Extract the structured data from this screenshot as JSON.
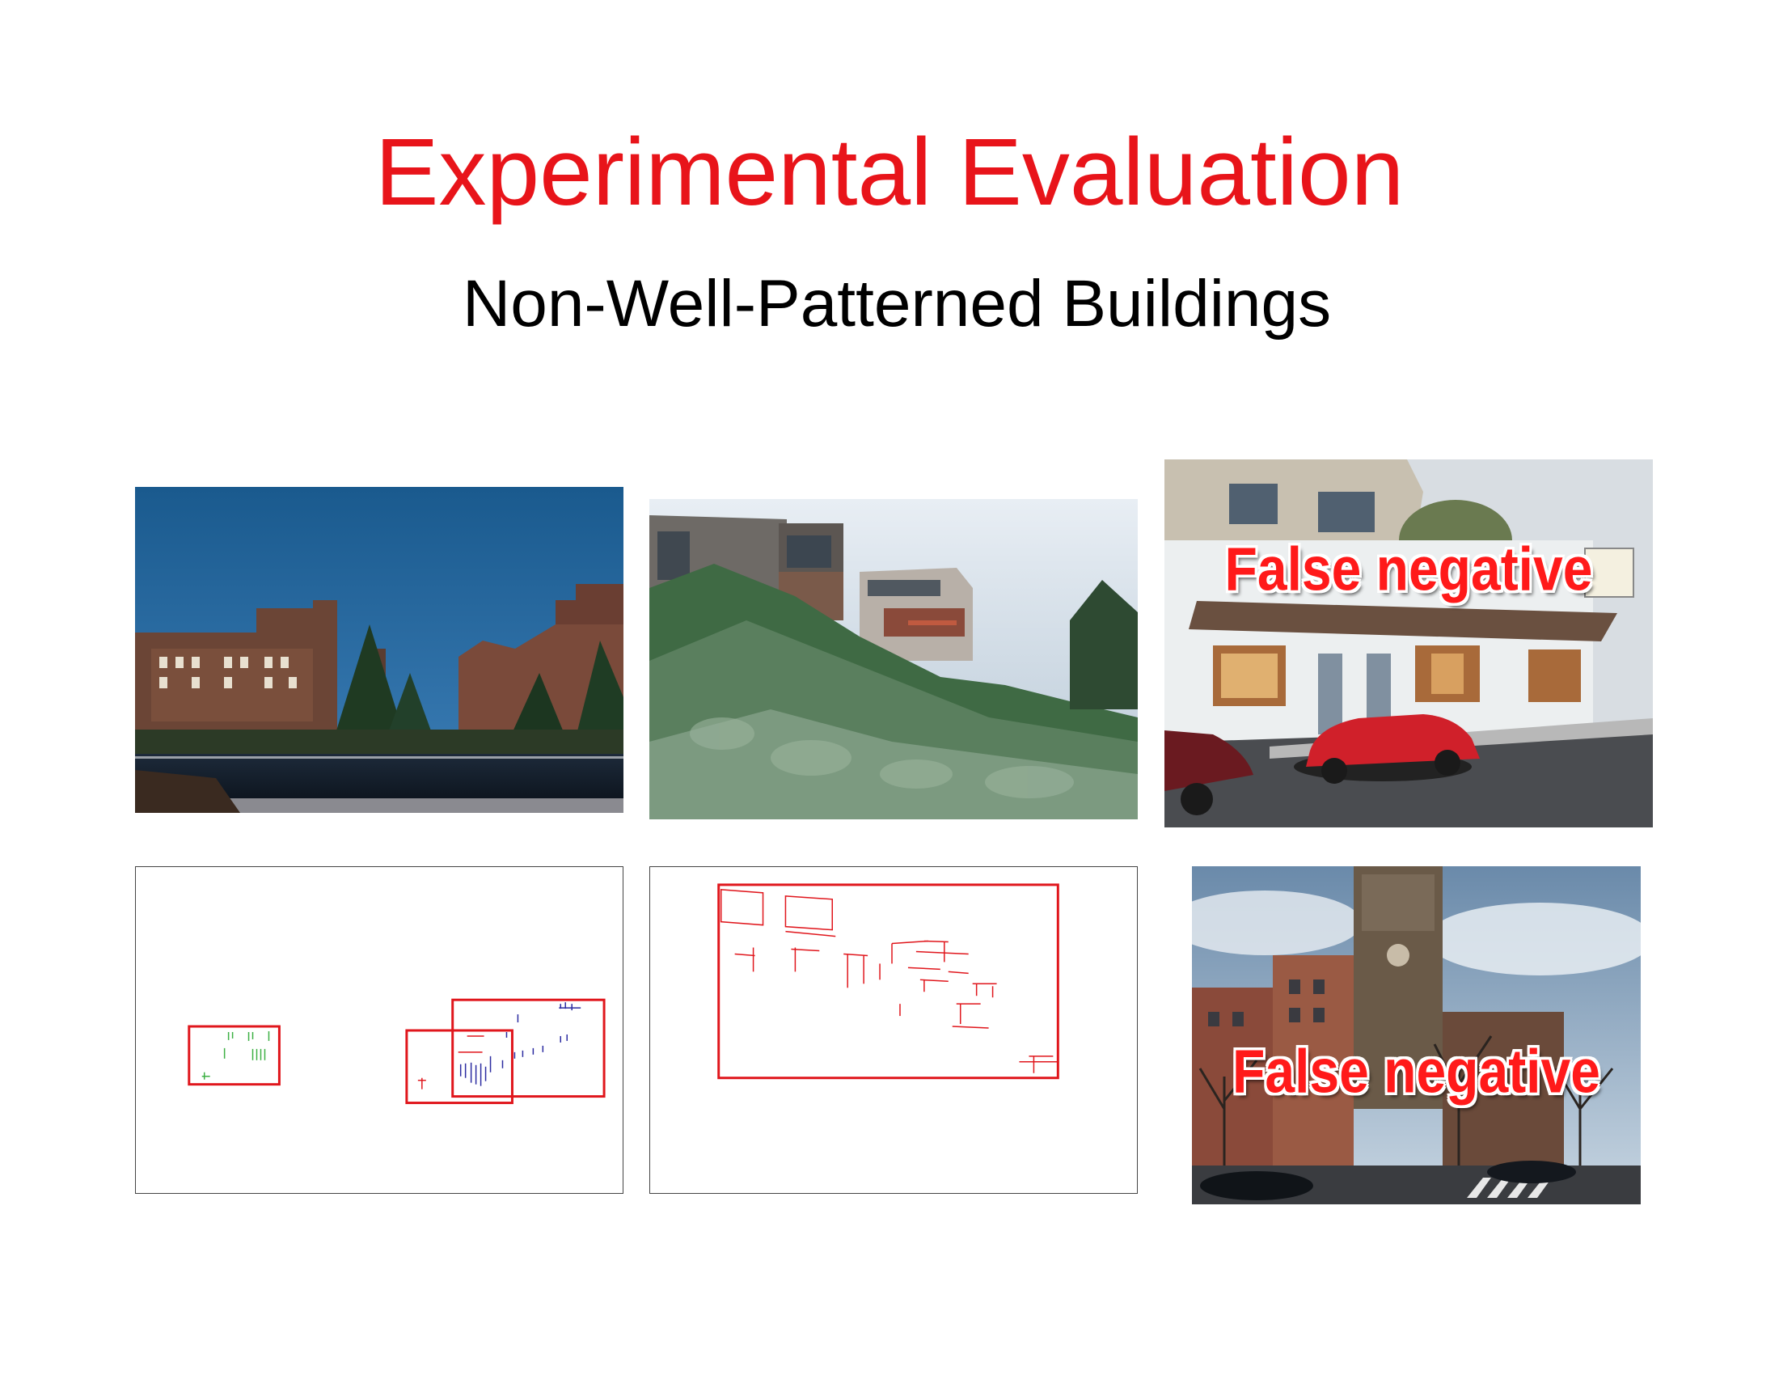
{
  "slide": {
    "title": "Experimental Evaluation",
    "subtitle": "Non-Well-Patterned Buildings"
  },
  "panels": {
    "street": {
      "label": "False negative"
    },
    "church": {
      "label": "False negative"
    }
  },
  "colors": {
    "title": "#e8141a",
    "detection_box": "#e0161c",
    "green_edges": "#3cb043",
    "blue_edges": "#2a2aa0"
  }
}
